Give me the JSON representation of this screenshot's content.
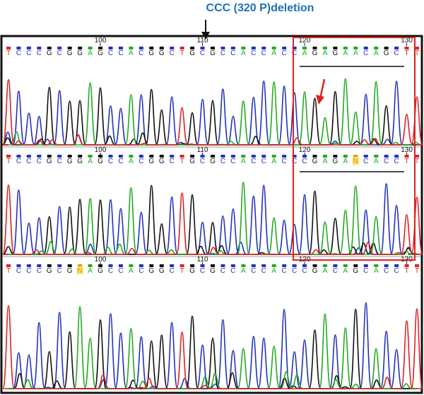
{
  "annotation": {
    "label": "CCC (320 P)deletion",
    "label_color": "#1f6fb4"
  },
  "colors": {
    "A": "#22aa22",
    "C": "#2233bb",
    "G": "#111111",
    "T": "#dd2222",
    "N": "#dd9900",
    "highlight_box": "#dd2222",
    "frame": "#111111"
  },
  "tracks": [
    {
      "name": "top",
      "sequence": "TCCCGCGGAGCCACGGCTGCGCCACCACCAGAGAACAGCTT",
      "positions": [
        {
          "label": "100",
          "base_index": 10
        },
        {
          "label": "110",
          "base_index": 20
        },
        {
          "label": "120",
          "base_index": 30
        },
        {
          "label": "130",
          "base_index": 40
        }
      ]
    },
    {
      "name": "middle",
      "sequence": "TCCCGCGGAGCCACGGCTGCGCCACCACCCGAGANCACCTT",
      "positions": [
        {
          "label": "100",
          "base_index": 10
        },
        {
          "label": "110",
          "base_index": 20
        },
        {
          "label": "120",
          "base_index": 30
        },
        {
          "label": "130",
          "base_index": 40
        }
      ]
    },
    {
      "name": "bottom",
      "sequence": "TCCCGCGNAGCCACGGCTGCGCCACCACCCGACAGCACCTT",
      "positions": [
        {
          "label": "100",
          "base_index": 10
        },
        {
          "label": "110",
          "base_index": 20
        },
        {
          "label": "120",
          "base_index": 30
        },
        {
          "label": "130",
          "base_index": 40
        }
      ]
    }
  ]
}
